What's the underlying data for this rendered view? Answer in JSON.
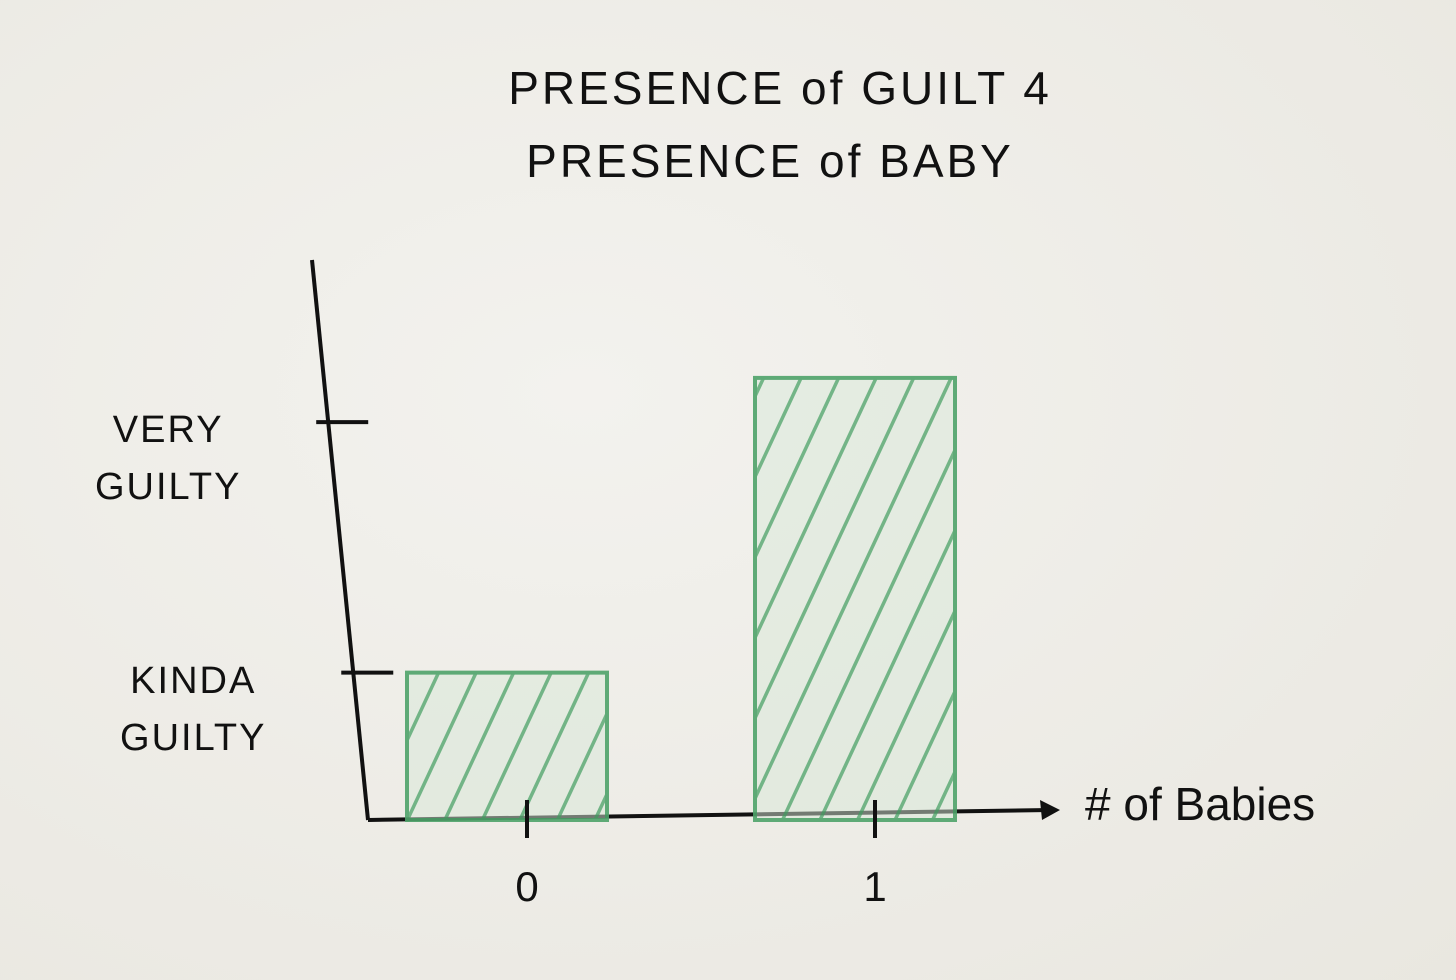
{
  "chart_data": {
    "type": "bar",
    "title": [
      "PRESENCE of GUILT 4",
      "PRESENCE of BABY"
    ],
    "x_label": "# of Babies",
    "categories": [
      "0",
      "1"
    ],
    "values": [
      1,
      3
    ],
    "color": "#4fa36a",
    "ylim": [
      0,
      3.8
    ],
    "yticks": [
      {
        "value": 1,
        "label": "KINDA GUILTY"
      },
      {
        "value": 2.7,
        "label": "VERY GUILTY"
      }
    ],
    "grid": false
  }
}
